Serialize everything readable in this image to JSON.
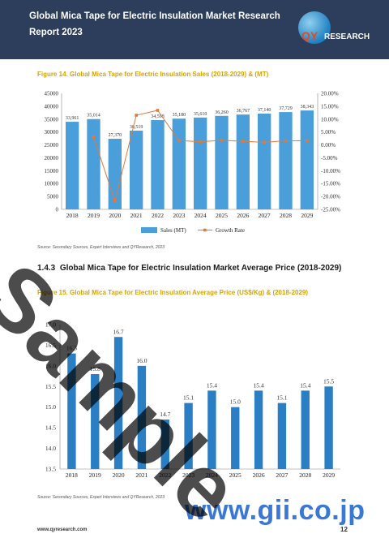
{
  "header": {
    "title": "Global Mica Tape for Electric Insulation Market Research Report 2023",
    "logo_text_qy": "QY",
    "logo_text_research": "RESEARCH"
  },
  "figure14": {
    "caption": "Figure 14.   Global Mica Tape for Electric Insulation Sales (2018-2029) & (MT)",
    "source": "Source: Secondary Sources, Expert Interviews and QYResearch, 2023"
  },
  "section": {
    "number": "1.4.3",
    "title": "Global Mica Tape for Electric Insulation Market Average Price (2018-2029)"
  },
  "figure15": {
    "caption": "Figure 15.   Global Mica Tape for Electric Insulation Average Price (US$/Kg) & (2018-2029)",
    "source": "Source: Secondary Sources, Expert Interviews and QYResearch, 2023"
  },
  "footer": {
    "url": "www.qyresearch.com",
    "page": "12",
    "gii": "www.gii.co.jp",
    "watermark": "Sample"
  },
  "chart_data": [
    {
      "type": "bar",
      "categories": [
        "2018",
        "2019",
        "2020",
        "2021",
        "2022",
        "2023",
        "2024",
        "2025",
        "2026",
        "2027",
        "2028",
        "2029"
      ],
      "series": [
        {
          "name": "Sales (MT)",
          "type": "bar",
          "values": [
            33961,
            35014,
            27370,
            30519,
            34598,
            35180,
            35610,
            36260,
            36767,
            37140,
            37729,
            38343
          ],
          "labels": [
            "33,961",
            "35,014",
            "27,370",
            "30,519",
            "34,598",
            "35,180",
            "35,610",
            "36,260",
            "36,767",
            "37,140",
            "37,729",
            "38,343"
          ],
          "color": "#4a9fdb"
        },
        {
          "name": "Growth Rate",
          "type": "line",
          "values": [
            null,
            3.1,
            -21.8,
            11.5,
            13.4,
            1.7,
            1.2,
            1.8,
            1.4,
            1.0,
            1.6,
            1.6
          ],
          "color": "#e07a3a"
        }
      ],
      "y_ticks": [
        "0",
        "5000",
        "10000",
        "15000",
        "20000",
        "25000",
        "30000",
        "35000",
        "40000",
        "45000"
      ],
      "ylim": [
        0,
        45000
      ],
      "y2_ticks": [
        "-25.00%",
        "-20.00%",
        "-15.00%",
        "-10.00%",
        "-5.00%",
        "0.00%",
        "5.00%",
        "10.00%",
        "15.00%",
        "20.00%"
      ],
      "y2lim": [
        -25,
        20
      ],
      "legend": "bottom"
    },
    {
      "type": "bar",
      "categories": [
        "2018",
        "2019",
        "2020",
        "2021",
        "2022",
        "2023",
        "2024",
        "2025",
        "2026",
        "2027",
        "2028",
        "2029"
      ],
      "values": [
        16.3,
        15.8,
        16.7,
        16.0,
        14.7,
        15.1,
        15.4,
        15.0,
        15.4,
        15.1,
        15.4,
        15.5
      ],
      "labels": [
        "16.3",
        "15.8",
        "16.7",
        "16.0",
        "14.7",
        "15.1",
        "15.4",
        "15.0",
        "15.4",
        "15.1",
        "15.4",
        "15.5"
      ],
      "y_ticks": [
        "13.5",
        "14.0",
        "14.5",
        "15.0",
        "15.5",
        "16.0",
        "16.5",
        "17.0"
      ],
      "ylim": [
        13.5,
        17.0
      ],
      "color": "#2a7fc4"
    }
  ]
}
